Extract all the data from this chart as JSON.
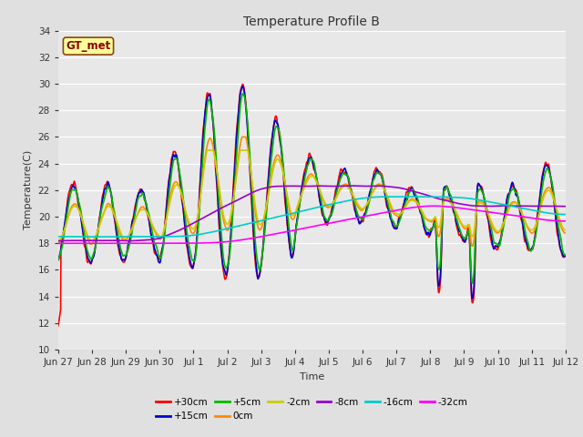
{
  "title": "Temperature Profile B",
  "xlabel": "Time",
  "ylabel": "Temperature(C)",
  "ylim": [
    10,
    34
  ],
  "xlim": [
    0,
    360
  ],
  "background_color": "#e0e0e0",
  "plot_bg_color": "#e8e8e8",
  "gt_met_label": "GT_met",
  "series": [
    {
      "label": "+30cm",
      "color": "#ff0000",
      "lw": 1.2
    },
    {
      "label": "+15cm",
      "color": "#0000cc",
      "lw": 1.2
    },
    {
      "label": "+5cm",
      "color": "#00bb00",
      "lw": 1.2
    },
    {
      "label": "0cm",
      "color": "#ff8800",
      "lw": 1.2
    },
    {
      "label": "-2cm",
      "color": "#cccc00",
      "lw": 1.2
    },
    {
      "label": "-8cm",
      "color": "#9900cc",
      "lw": 1.2
    },
    {
      "label": "-16cm",
      "color": "#00cccc",
      "lw": 1.2
    },
    {
      "label": "-32cm",
      "color": "#ff00ff",
      "lw": 1.2
    }
  ],
  "xtick_labels": [
    "Jun 27",
    "Jun 28",
    "Jun 29",
    "Jun 30",
    "Jul 1",
    "Jul 2",
    "Jul 3",
    "Jul 4",
    "Jul 5",
    "Jul 6",
    "Jul 7",
    "Jul 8",
    "Jul 9",
    "Jul 10",
    "Jul 11",
    "Jul 12"
  ],
  "xtick_positions": [
    0,
    24,
    48,
    72,
    96,
    120,
    144,
    168,
    192,
    216,
    240,
    264,
    288,
    312,
    336,
    360
  ],
  "ytick_values": [
    10,
    12,
    14,
    16,
    18,
    20,
    22,
    24,
    26,
    28,
    30,
    32,
    34
  ]
}
